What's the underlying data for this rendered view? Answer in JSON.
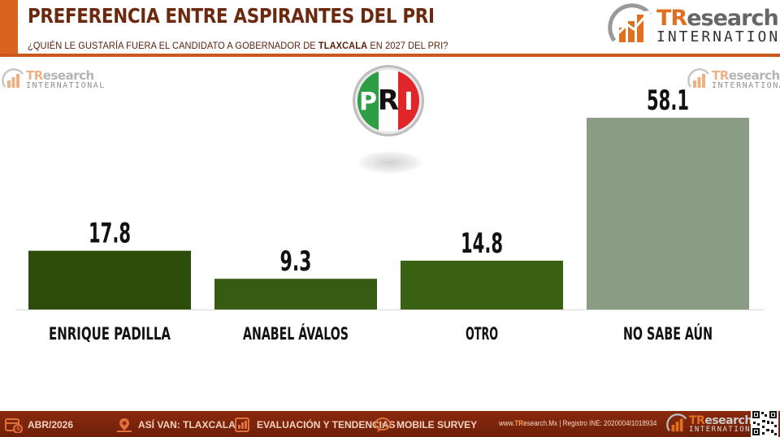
{
  "header": {
    "title": "PREFERENCIA ENTRE ASPIRANTES DEL PRI",
    "question_prefix": "¿QUIÉN LE GUSTARÍA FUERA EL CANDIDATO A GOBERNADOR DE ",
    "question_bold": "TLAXCALA",
    "question_suffix": " EN 2027 DEL PRI?"
  },
  "brand": {
    "tr_a": "TR",
    "tr_b": "esearch",
    "international": "INTERNATIONAL",
    "mark_icon": "bar-chart-arrow-icon"
  },
  "party_logo": {
    "icon": "pri-party-logo-icon",
    "letters": [
      "P",
      "R",
      "I"
    ],
    "colors": {
      "green": "#2e9e44",
      "white": "#ffffff",
      "red": "#e0262b"
    }
  },
  "chart_data": {
    "type": "bar",
    "categories": [
      "ENRIQUE PADILLA",
      "ANABEL ÁVALOS",
      "OTRO",
      "NO SABE AÚN"
    ],
    "values": [
      17.8,
      9.3,
      14.8,
      58.1
    ],
    "value_labels": [
      "17.8",
      "9.3",
      "14.8",
      "58.1"
    ],
    "bar_colors": [
      "#2d4d0b",
      "#375b12",
      "#3a6012",
      "#8a9c84"
    ],
    "ylim": [
      0,
      65
    ],
    "grid": false,
    "legend": "none"
  },
  "footer": {
    "items": [
      {
        "icon": "calendar-icon",
        "label": "ABR/2026"
      },
      {
        "icon": "map-pin-icon",
        "label": "ASÍ VAN: TLAXCALA"
      },
      {
        "icon": "report-chart-icon",
        "label": "EVALUACIÓN Y TENDENCIAS"
      },
      {
        "icon": "chat-bubble-icon",
        "label": "MOBILE SURVEY"
      }
    ],
    "site_prefix": "www.",
    "site_highlight": "TR",
    "site_suffix": "esearch.Mx | Registro INE: 2020004I1018934",
    "qr_icon": "qr-code-icon"
  }
}
